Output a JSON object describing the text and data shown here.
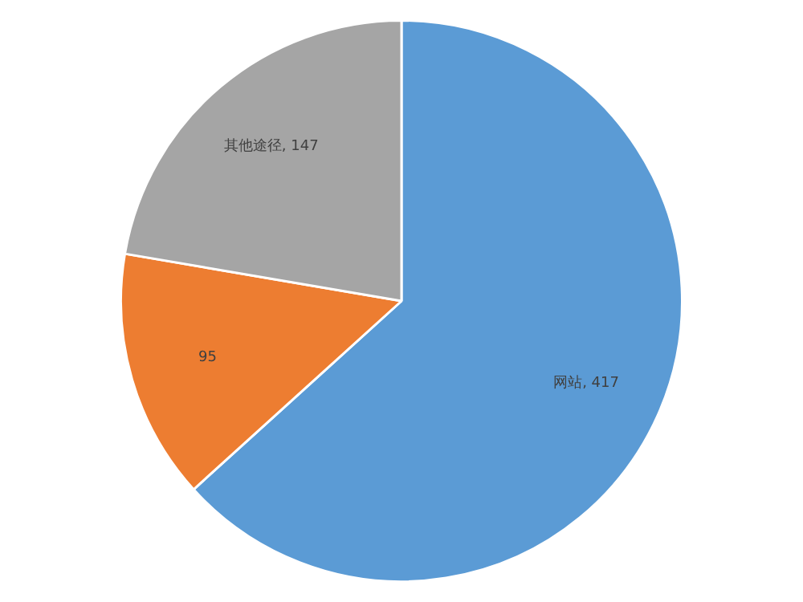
{
  "chart_data": {
    "type": "pie",
    "categories": [
      "网站",
      null,
      "其他途径"
    ],
    "values": [
      417,
      95,
      147
    ],
    "value_labels": [
      ", 417",
      "95",
      ", 147"
    ],
    "colors": [
      "#5b9bd5",
      "#ed7d31",
      "#a5a5a5"
    ],
    "legend": false
  }
}
